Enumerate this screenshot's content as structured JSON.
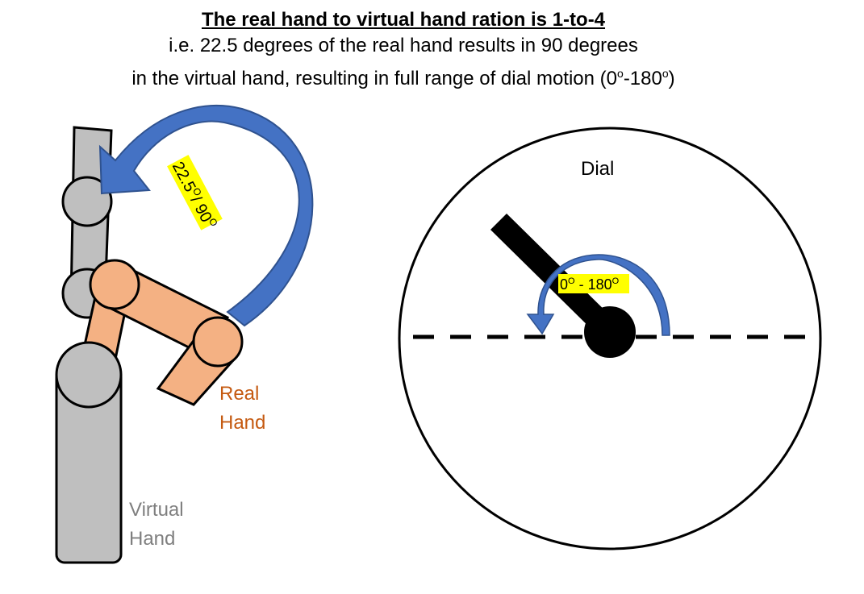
{
  "header": {
    "title": "The real hand to virtual hand ration is 1-to-4",
    "line1": "i.e. 22.5 degrees of the real hand results in 90 degrees",
    "line2_pre": "in the virtual hand, resulting in full range of dial motion (0",
    "line2_sup1": "o",
    "line2_mid": "-180",
    "line2_sup2": "o",
    "line2_post": ")"
  },
  "labels": {
    "rotation_main": "22.5",
    "rotation_sup1": "O",
    "rotation_mid": "/ 90",
    "rotation_sup2": "O",
    "dial": "Dial",
    "dial_range_a": "0",
    "dial_range_sup1": "O",
    "dial_range_b": " - 180",
    "dial_range_sup2": "O",
    "real_hand_line1": "Real",
    "real_hand_line2": "Hand",
    "virtual_hand_line1": "Virtual",
    "virtual_hand_line2": "Hand"
  },
  "colors": {
    "arrow_blue": "#4472C4",
    "arrow_stroke": "#2F528F",
    "real_hand": "#F4B183",
    "real_hand_text": "#C55A11",
    "virtual_hand": "#BFBFBF",
    "virtual_hand_text": "#7F7F7F",
    "highlight": "#FFFF00"
  }
}
